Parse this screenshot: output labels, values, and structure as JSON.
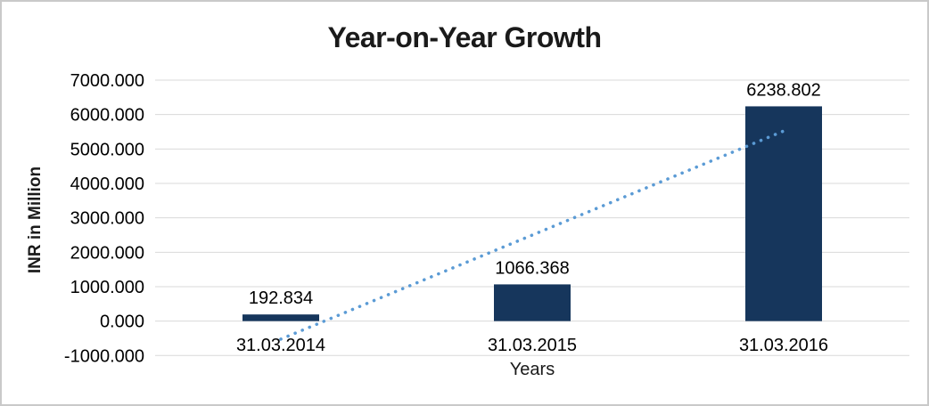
{
  "chart_data": {
    "type": "bar",
    "title": "Year-on-Year Growth",
    "xlabel": "Years",
    "ylabel": "INR in Million",
    "categories": [
      "31.03.2014",
      "31.03.2015",
      "31.03.2016"
    ],
    "series": [
      {
        "name": "INR in Million",
        "values": [
          192.834,
          1066.368,
          6238.802
        ]
      }
    ],
    "data_labels": [
      "192.834",
      "1066.368",
      "6238.802"
    ],
    "y_ticks": [
      "7000.000",
      "6000.000",
      "5000.000",
      "4000.000",
      "3000.000",
      "2000.000",
      "1000.000",
      "0.000",
      "-1000.000"
    ],
    "ylim": [
      -1000,
      7000
    ],
    "y_step": 1000,
    "grid": true,
    "legend_position": "none",
    "trendline": {
      "type": "linear",
      "style": "dotted",
      "color": "#5B9BD5"
    },
    "colors": {
      "bar": "#16365C",
      "gridline": "#D9D9D9",
      "text": "#000000",
      "border": "#C9C9C9",
      "background": "#FFFFFF"
    }
  }
}
